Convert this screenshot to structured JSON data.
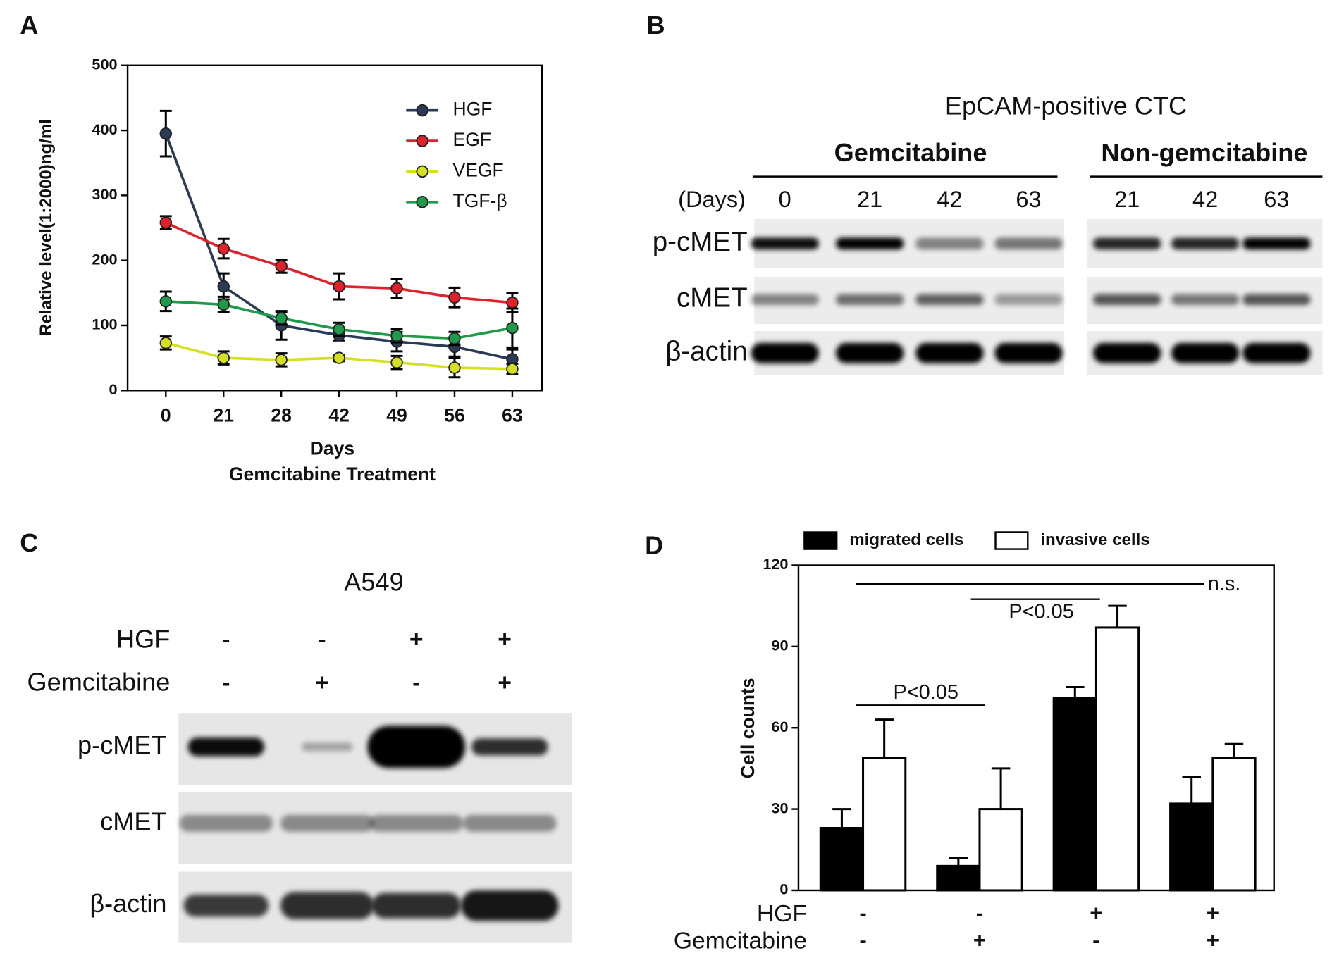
{
  "chart_data": [
    {
      "type": "line",
      "panel": "A",
      "y_label": "Relative level(1:2000)ng/ml",
      "x_label": "Days",
      "x_sublabel": "Gemcitabine Treatment",
      "categories": [
        "0",
        "21",
        "28",
        "42",
        "49",
        "56",
        "63"
      ],
      "series": [
        {
          "name": "HGF",
          "color": "#2b3a55",
          "values": [
            395,
            160,
            100,
            85,
            75,
            67,
            48
          ],
          "errors": [
            35,
            20,
            22,
            8,
            15,
            15,
            15
          ]
        },
        {
          "name": "EGF",
          "color": "#e0202a",
          "values": [
            258,
            218,
            191,
            160,
            157,
            143,
            135
          ],
          "errors": [
            10,
            15,
            10,
            20,
            15,
            15,
            15
          ]
        },
        {
          "name": "VEGF",
          "color": "#d4e020",
          "values": [
            73,
            50,
            47,
            50,
            43,
            35,
            33
          ],
          "errors": [
            10,
            10,
            10,
            5,
            10,
            15,
            8
          ]
        },
        {
          "name": "TGF-β",
          "color": "#1f9a4a",
          "values": [
            137,
            132,
            111,
            94,
            84,
            80,
            96
          ],
          "errors": [
            15,
            12,
            10,
            10,
            10,
            10,
            30
          ]
        }
      ],
      "ylim": [
        0,
        500
      ],
      "yticks": [
        0,
        100,
        200,
        300,
        400,
        500
      ],
      "legend": "upper right"
    },
    {
      "type": "bar",
      "panel": "D",
      "y_label": "Cell counts",
      "conditions": [
        {
          "name": "HGF",
          "lanes": [
            "-",
            "-",
            "+",
            "+"
          ]
        },
        {
          "name": "Gemcitabine",
          "lanes": [
            "-",
            "+",
            "-",
            "+"
          ]
        }
      ],
      "series": [
        {
          "name": "migrated cells",
          "color": "#000000",
          "values": [
            23,
            9,
            71,
            32
          ],
          "errors": [
            7,
            3,
            4,
            10
          ]
        },
        {
          "name": "invasive cells",
          "color": "#ffffff",
          "values": [
            49,
            30,
            97,
            49
          ],
          "errors": [
            14,
            15,
            8,
            5
          ]
        }
      ],
      "ylim": [
        0,
        120
      ],
      "yticks": [
        0,
        30,
        60,
        90,
        120
      ],
      "annotations": [
        "n.s.",
        "P<0.05",
        "P<0.05"
      ],
      "legend": "top"
    }
  ],
  "blots": [
    {
      "panel": "B",
      "title": "EpCAM-positive CTC",
      "days_label": "(Days)",
      "groups": [
        {
          "name": "Gemcitabine",
          "lanes": [
            "0",
            "21",
            "42",
            "63"
          ]
        },
        {
          "name": "Non-gemcitabine",
          "lanes": [
            "21",
            "42",
            "63"
          ]
        }
      ],
      "rows": [
        "p-cMET",
        "cMET",
        "β-actin"
      ]
    },
    {
      "panel": "C",
      "title": "A549",
      "conditions": [
        {
          "name": "HGF",
          "lanes": [
            "-",
            "-",
            "+",
            "+"
          ]
        },
        {
          "name": "Gemcitabine",
          "lanes": [
            "-",
            "+",
            "-",
            "+"
          ]
        }
      ],
      "rows": [
        "p-cMET",
        "cMET",
        "β-actin"
      ]
    }
  ]
}
